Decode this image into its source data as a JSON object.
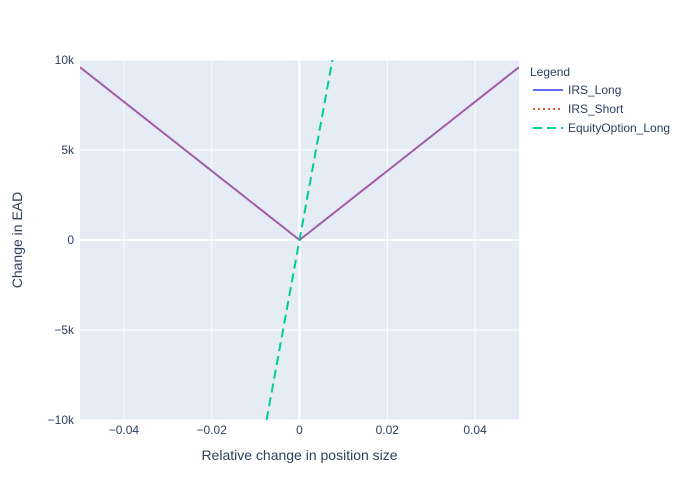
{
  "chart_data": {
    "type": "line",
    "title": "",
    "xlabel": "Relative change in position size",
    "ylabel": "Change in EAD",
    "xlim": [
      -0.05,
      0.05
    ],
    "ylim": [
      -10000,
      10000
    ],
    "x_ticks": [
      -0.04,
      -0.02,
      0,
      0.02,
      0.04
    ],
    "x_tick_labels": [
      "−0.04",
      "−0.02",
      "0",
      "0.02",
      "0.04"
    ],
    "y_ticks": [
      -10000,
      -5000,
      0,
      5000,
      10000
    ],
    "y_tick_labels": [
      "−10k",
      "−5k",
      "0",
      "5k",
      "10k"
    ],
    "grid": true,
    "plot_background": "#e5ecf6",
    "legend": {
      "title": "Legend",
      "placement": "right"
    },
    "series": [
      {
        "name": "IRS_Long",
        "color": "#636efa",
        "dash": "solid",
        "x": [
          -0.05,
          0,
          0.05
        ],
        "y": [
          9600,
          0,
          9600
        ]
      },
      {
        "name": "IRS_Short",
        "color": "#ef553b",
        "dash": "dot",
        "x": [
          -0.05,
          0,
          0.05
        ],
        "y": [
          9600,
          0,
          9600
        ]
      },
      {
        "name": "EquityOption_Long",
        "color": "#00cc96",
        "dash": "dash",
        "x": [
          -0.0075,
          0,
          0.0075
        ],
        "y": [
          -10000,
          0,
          10000
        ]
      }
    ],
    "overlap_color": "#a35ca8"
  }
}
